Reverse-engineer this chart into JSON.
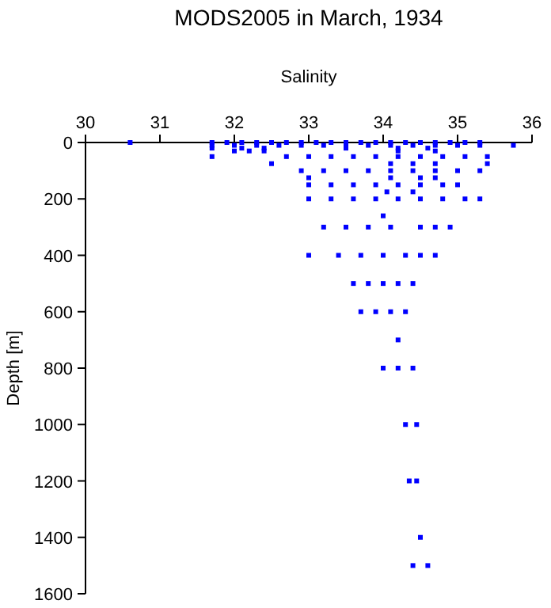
{
  "chart_data": {
    "type": "scatter",
    "title": "MODS2005 in March, 1934",
    "xlabel": "Salinity",
    "ylabel": "Depth [m]",
    "marker": "square",
    "xlim": [
      30,
      36
    ],
    "xticks": [
      30,
      31,
      32,
      33,
      34,
      35,
      36
    ],
    "ylim": [
      1600,
      0
    ],
    "yticks": [
      0,
      200,
      400,
      600,
      800,
      1000,
      1200,
      1400,
      1600
    ],
    "series": [
      {
        "color": "#0000ff",
        "x": [
          30.6,
          31.7,
          31.9,
          32.1,
          32.3,
          32.5,
          32.7,
          32.9,
          33.1,
          33.3,
          33.5,
          33.7,
          33.9,
          34.1,
          34.3,
          34.5,
          34.7,
          34.9,
          35.1,
          35.3,
          31.7,
          32.0,
          32.3,
          32.6,
          32.9,
          33.2,
          33.5,
          33.8,
          34.1,
          34.4,
          34.7,
          35.0,
          35.3,
          35.75,
          31.7,
          32.1,
          32.4,
          33.5,
          34.2,
          34.6,
          32.0,
          32.2,
          32.4,
          34.2,
          34.7,
          31.7,
          32.7,
          33.0,
          33.3,
          33.6,
          33.9,
          34.2,
          34.5,
          34.8,
          35.1,
          35.4,
          32.5,
          34.1,
          34.4,
          34.7,
          35.4,
          32.9,
          33.2,
          33.5,
          33.8,
          34.1,
          34.4,
          34.7,
          35.0,
          35.3,
          33.0,
          34.1,
          34.5,
          34.7,
          33.0,
          33.3,
          33.6,
          33.9,
          34.2,
          34.5,
          34.8,
          35.0,
          34.05,
          34.4,
          33.0,
          33.3,
          33.6,
          33.9,
          34.2,
          34.5,
          34.8,
          35.1,
          35.3,
          34.0,
          33.2,
          33.5,
          33.8,
          34.1,
          34.5,
          34.7,
          34.9,
          33.0,
          33.4,
          33.7,
          34.0,
          34.3,
          34.5,
          34.7,
          33.6,
          33.8,
          34.0,
          34.2,
          34.4,
          33.7,
          33.9,
          34.1,
          34.3,
          34.2,
          34.0,
          34.2,
          34.4,
          34.3,
          34.45,
          34.35,
          34.45,
          34.5,
          34.4,
          34.6
        ],
        "values": [
          0,
          0,
          0,
          0,
          0,
          0,
          0,
          0,
          0,
          0,
          0,
          0,
          0,
          0,
          0,
          0,
          0,
          0,
          0,
          0,
          10,
          10,
          10,
          10,
          10,
          10,
          10,
          10,
          10,
          10,
          10,
          10,
          10,
          10,
          20,
          20,
          20,
          20,
          20,
          20,
          30,
          30,
          30,
          30,
          30,
          50,
          50,
          50,
          50,
          50,
          50,
          50,
          50,
          50,
          50,
          50,
          75,
          75,
          75,
          75,
          75,
          100,
          100,
          100,
          100,
          100,
          100,
          100,
          100,
          100,
          125,
          125,
          125,
          125,
          150,
          150,
          150,
          150,
          150,
          150,
          150,
          150,
          175,
          175,
          200,
          200,
          200,
          200,
          200,
          200,
          200,
          200,
          200,
          260,
          300,
          300,
          300,
          300,
          300,
          300,
          300,
          400,
          400,
          400,
          400,
          400,
          400,
          400,
          500,
          500,
          500,
          500,
          500,
          600,
          600,
          600,
          600,
          700,
          800,
          800,
          800,
          1000,
          1000,
          1200,
          1200,
          1400,
          1500,
          1500
        ]
      }
    ]
  }
}
